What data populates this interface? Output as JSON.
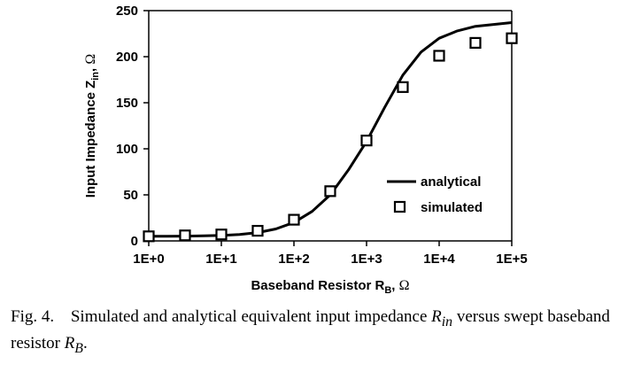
{
  "chart_data": {
    "type": "scatter",
    "title": "",
    "xlabel": "Baseband Resistor R",
    "xlabel_sub": "B",
    "xlabel_unit": "Ω",
    "ylabel": "Input Impedance Z",
    "ylabel_sub": "in",
    "ylabel_unit": "Ω",
    "x_scale": "log10",
    "xlim": [
      1,
      100000
    ],
    "ylim": [
      0,
      250
    ],
    "x_ticks": [
      1,
      10,
      100,
      1000,
      10000,
      100000
    ],
    "x_tick_labels": [
      "1E+0",
      "1E+1",
      "1E+2",
      "1E+3",
      "1E+4",
      "1E+5"
    ],
    "y_ticks": [
      0,
      50,
      100,
      150,
      200,
      250
    ],
    "y_tick_labels": [
      "0",
      "50",
      "100",
      "150",
      "200",
      "250"
    ],
    "grid": false,
    "legend_position": "center-right",
    "series": [
      {
        "name": "analytical",
        "style": "line",
        "x": [
          1,
          1.78,
          3.16,
          5.62,
          10,
          17.8,
          31.6,
          56.2,
          100,
          178,
          316,
          562,
          1000,
          1780,
          3160,
          5620,
          10000,
          17800,
          31600,
          56200,
          100000
        ],
        "y": [
          5,
          5,
          5.2,
          5.5,
          6,
          7,
          9,
          13,
          20,
          32,
          50,
          77,
          108,
          145,
          180,
          205,
          220,
          228,
          233,
          235,
          237
        ]
      },
      {
        "name": "simulated",
        "style": "square-marker",
        "x": [
          1,
          3.16,
          10,
          31.6,
          100,
          316,
          1000,
          3160,
          10000,
          31600,
          100000
        ],
        "y": [
          5,
          6,
          7,
          11,
          23,
          54,
          109,
          167,
          201,
          215,
          220
        ]
      }
    ]
  },
  "caption": {
    "label": "Fig. 4.",
    "text_1": "Simulated and analytical equivalent input impedance",
    "math_1": "R",
    "math_1_sub": "in",
    "text_2": "versus swept baseband resistor",
    "math_2": "R",
    "math_2_sub": "B",
    "text_end": "."
  }
}
